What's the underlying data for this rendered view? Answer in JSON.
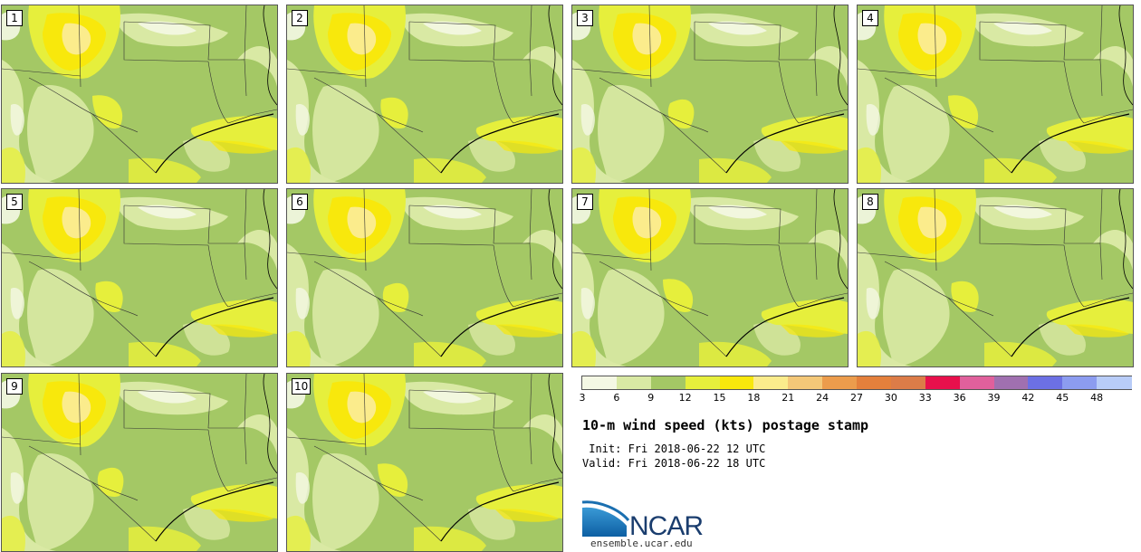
{
  "panels": [
    {
      "label": "1"
    },
    {
      "label": "2"
    },
    {
      "label": "3"
    },
    {
      "label": "4"
    },
    {
      "label": "5"
    },
    {
      "label": "6"
    },
    {
      "label": "7"
    },
    {
      "label": "8"
    },
    {
      "label": "9"
    },
    {
      "label": "10"
    }
  ],
  "legend": {
    "bins": [
      {
        "color": "#f4f8e4"
      },
      {
        "color": "#d9e9a4"
      },
      {
        "color": "#a4c865"
      },
      {
        "color": "#e6ef3c"
      },
      {
        "color": "#f8e80c"
      },
      {
        "color": "#fbec8c"
      },
      {
        "color": "#f4c878"
      },
      {
        "color": "#ec9c4c"
      },
      {
        "color": "#e4803c"
      },
      {
        "color": "#dc7c48"
      },
      {
        "color": "#e8104c"
      },
      {
        "color": "#e0609c"
      },
      {
        "color": "#a070b0"
      },
      {
        "color": "#6c70e4"
      },
      {
        "color": "#8c9cf0"
      },
      {
        "color": "#b8ccf8"
      }
    ],
    "ticks": [
      "3",
      "6",
      "9",
      "12",
      "15",
      "18",
      "21",
      "24",
      "27",
      "30",
      "33",
      "36",
      "39",
      "42",
      "45",
      "48"
    ]
  },
  "title": "10-m wind speed (kts) postage stamp",
  "init_line": " Init: Fri 2018-06-22 12 UTC",
  "valid_line": "Valid: Fri 2018-06-22 18 UTC",
  "logo": {
    "text": "NCAR",
    "url": "ensemble.ucar.edu"
  }
}
